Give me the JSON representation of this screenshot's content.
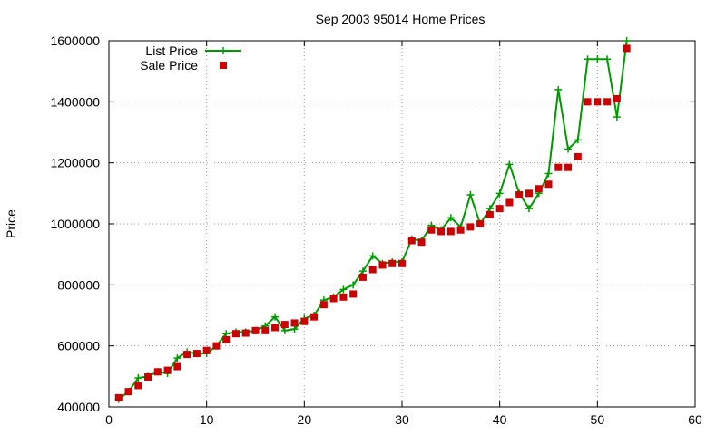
{
  "chart_data": {
    "type": "line",
    "title": "Sep 2003 95014 Home Prices",
    "xlabel": "",
    "ylabel": "Price",
    "xlim": [
      0,
      60
    ],
    "ylim": [
      400000,
      1600000
    ],
    "xticks": [
      0,
      10,
      20,
      30,
      40,
      50,
      60
    ],
    "yticks": [
      400000,
      600000,
      800000,
      1000000,
      1200000,
      1400000,
      1600000
    ],
    "grid": true,
    "legend_position": "top-left",
    "series": [
      {
        "name": "List Price",
        "style": "line-plus",
        "color": "#009900",
        "x": [
          1,
          2,
          3,
          4,
          5,
          6,
          7,
          8,
          9,
          10,
          11,
          12,
          13,
          14,
          15,
          16,
          17,
          18,
          19,
          20,
          21,
          22,
          23,
          24,
          25,
          26,
          27,
          28,
          29,
          30,
          31,
          32,
          33,
          34,
          35,
          36,
          37,
          38,
          39,
          40,
          41,
          42,
          43,
          44,
          45,
          46,
          47,
          48,
          49,
          50,
          51,
          52,
          53
        ],
        "values": [
          425000,
          450000,
          495000,
          500000,
          515000,
          510000,
          560000,
          580000,
          575000,
          575000,
          600000,
          640000,
          645000,
          645000,
          650000,
          665000,
          695000,
          650000,
          655000,
          690000,
          700000,
          750000,
          760000,
          785000,
          800000,
          845000,
          895000,
          870000,
          875000,
          875000,
          950000,
          945000,
          995000,
          980000,
          1020000,
          990000,
          1095000,
          1000000,
          1050000,
          1100000,
          1195000,
          1100000,
          1050000,
          1100000,
          1165000,
          1440000,
          1245000,
          1275000,
          1540000,
          1540000,
          1540000,
          1350000,
          1600000
        ]
      },
      {
        "name": "Sale Price",
        "style": "square",
        "color": "#cc0000",
        "x": [
          1,
          2,
          3,
          4,
          5,
          6,
          7,
          8,
          9,
          10,
          11,
          12,
          13,
          14,
          15,
          16,
          17,
          18,
          19,
          20,
          21,
          22,
          23,
          24,
          25,
          26,
          27,
          28,
          29,
          30,
          31,
          32,
          33,
          34,
          35,
          36,
          37,
          38,
          39,
          40,
          41,
          42,
          43,
          44,
          45,
          46,
          47,
          48,
          49,
          50,
          51,
          52,
          53
        ],
        "values": [
          430000,
          450000,
          470000,
          498000,
          515000,
          520000,
          532000,
          572000,
          575000,
          585000,
          600000,
          620000,
          640000,
          642000,
          650000,
          650000,
          660000,
          670000,
          675000,
          680000,
          695000,
          735000,
          755000,
          760000,
          770000,
          825000,
          850000,
          865000,
          870000,
          870000,
          945000,
          940000,
          980000,
          975000,
          975000,
          980000,
          990000,
          1000000,
          1030000,
          1050000,
          1070000,
          1095000,
          1100000,
          1115000,
          1130000,
          1185000,
          1185000,
          1220000,
          1400000,
          1400000,
          1400000,
          1410000,
          1575000
        ]
      }
    ]
  }
}
